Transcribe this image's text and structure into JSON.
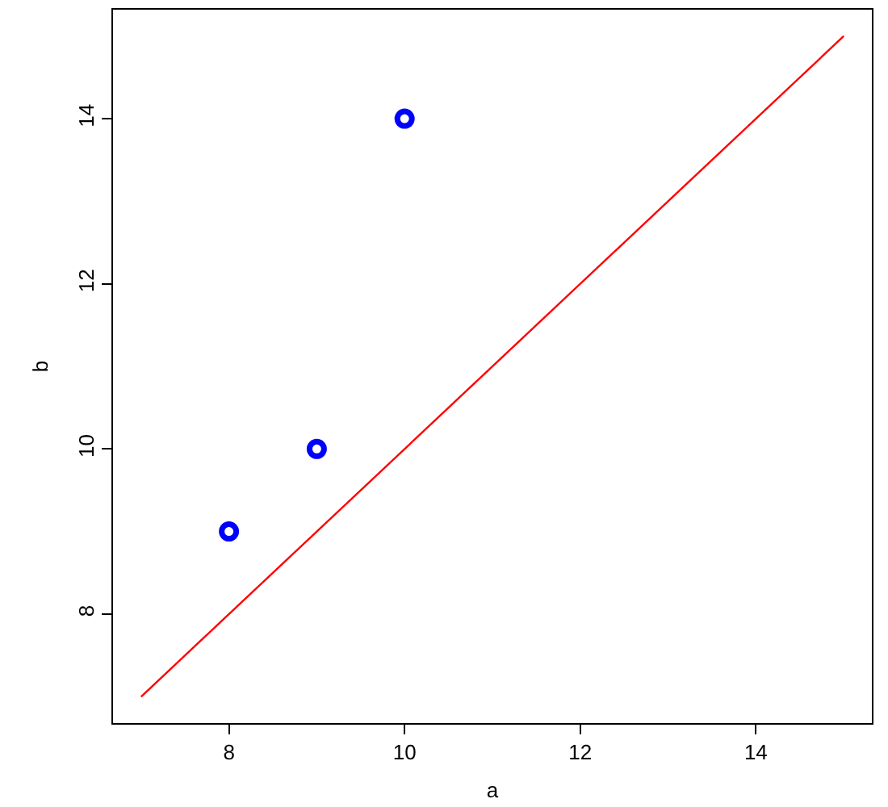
{
  "chart_data": {
    "type": "scatter",
    "xlabel": "a",
    "ylabel": "b",
    "xlim": [
      6.68,
      15.32
    ],
    "ylim": [
      6.68,
      15.32
    ],
    "xticks": [
      8,
      10,
      12,
      14
    ],
    "yticks": [
      8,
      10,
      12,
      14
    ],
    "series": [
      {
        "color": "#0000ff",
        "marker": "circle",
        "x": [
          8,
          9,
          10
        ],
        "values": [
          9,
          10,
          14
        ]
      },
      {
        "type": "line",
        "color": "#ff0000",
        "marker": "none",
        "line_style": "solid",
        "x": [
          7,
          15
        ],
        "values": [
          7,
          15
        ]
      }
    ]
  }
}
